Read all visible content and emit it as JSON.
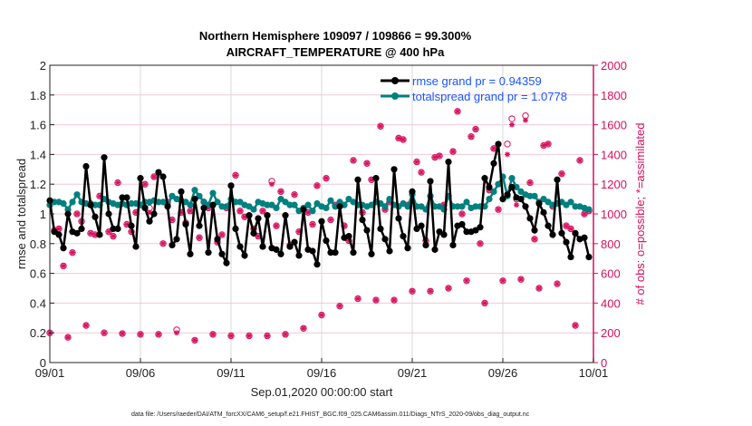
{
  "chart_data": {
    "type": "line",
    "title": "Northern Hemisphere 109097 / 109866 = 99.300%",
    "subtitle": "AIRCRAFT_TEMPERATURE @ 400 hPa",
    "xlabel": "Sep.01,2020 00:00:00 start",
    "ylabel": "rmse and totalspread",
    "ylabel_right": "# of obs: o=possible; *=assimilated",
    "footer": "data file: /Users/raeder/DAI/ATM_forcXX/CAM6_setup/f.e21.FHIST_BGC.f09_025.CAM6assim.011/Diags_NTrS_2020-09/obs_diag_output.nc",
    "x_tick_labels": [
      "09/01",
      "09/06",
      "09/11",
      "09/16",
      "09/21",
      "09/26",
      "10/01"
    ],
    "x_tick_days": [
      0,
      5,
      10,
      15,
      20,
      25,
      30
    ],
    "xlim_days": [
      0,
      30
    ],
    "x_step_days": 0.25,
    "ylim": [
      0,
      2
    ],
    "y_ticks": [
      "0",
      "0.2",
      "0.4",
      "0.6",
      "0.8",
      "1",
      "1.2",
      "1.4",
      "1.6",
      "1.8",
      "2"
    ],
    "ylim_right": [
      0,
      2000
    ],
    "y_ticks_right": [
      "0",
      "200",
      "400",
      "600",
      "800",
      "1000",
      "1200",
      "1400",
      "1600",
      "1800",
      "2000"
    ],
    "grid": true,
    "legend_position": "top-right",
    "colors": {
      "rmse": "#000000",
      "totalspread": "#00807f",
      "obs": "#d6105e",
      "legend_text": "#1a55ff"
    },
    "series": [
      {
        "name": "rmse grand pr = 0.94359",
        "values": [
          1.09,
          0.88,
          0.86,
          0.77,
          1.0,
          0.88,
          0.87,
          0.9,
          1.32,
          1.06,
          0.98,
          0.86,
          1.38,
          1.0,
          0.9,
          0.9,
          1.11,
          1.11,
          0.92,
          0.78,
          1.24,
          1.04,
          0.95,
          1.0,
          1.28,
          1.25,
          1.05,
          0.79,
          0.83,
          1.15,
          0.93,
          0.73,
          1.1,
          0.92,
          1.04,
          0.74,
          1.06,
          0.83,
          0.73,
          0.67,
          1.19,
          0.9,
          0.78,
          0.72,
          0.99,
          0.87,
          0.97,
          0.78,
          0.99,
          0.77,
          0.76,
          0.73,
          0.99,
          0.78,
          0.81,
          0.72,
          1.03,
          0.76,
          0.75,
          0.66,
          0.95,
          0.82,
          0.74,
          0.74,
          1.05,
          0.84,
          0.85,
          0.74,
          1.23,
          0.96,
          0.89,
          0.73,
          1.24,
          0.9,
          0.83,
          0.75,
          1.3,
          0.97,
          0.85,
          0.77,
          1.15,
          0.9,
          0.92,
          0.79,
          1.22,
          0.76,
          0.88,
          0.86,
          1.35,
          0.79,
          0.92,
          0.93,
          0.88,
          0.88,
          0.89,
          0.91,
          1.24,
          1.18,
          1.34,
          1.47,
          1.1,
          1.13,
          1.18,
          1.11,
          1.1,
          1.05,
          0.97,
          0.89,
          1.07,
          1.01,
          0.92,
          0.86,
          1.23,
          0.87,
          0.81,
          0.71,
          0.87,
          0.83,
          0.84,
          0.71
        ]
      },
      {
        "name": "totalspread grand pr = 1.0778",
        "values": [
          1.06,
          1.08,
          1.08,
          1.07,
          1.03,
          1.08,
          1.13,
          1.08,
          1.07,
          1.07,
          1.06,
          1.06,
          1.1,
          1.08,
          1.07,
          1.06,
          1.07,
          1.06,
          1.07,
          1.07,
          1.06,
          1.08,
          1.08,
          1.09,
          1.08,
          1.08,
          1.06,
          1.12,
          1.1,
          1.09,
          1.08,
          1.06,
          1.16,
          1.12,
          1.08,
          1.06,
          1.14,
          1.08,
          1.05,
          1.05,
          1.1,
          1.08,
          1.08,
          1.06,
          1.05,
          1.03,
          1.08,
          1.07,
          1.06,
          1.06,
          1.04,
          1.1,
          1.08,
          1.06,
          1.06,
          1.02,
          1.04,
          1.06,
          1.02,
          1.07,
          1.05,
          1.04,
          1.09,
          1.05,
          1.08,
          1.06,
          1.1,
          1.08,
          1.06,
          1.06,
          1.05,
          1.06,
          1.08,
          1.07,
          1.05,
          1.1,
          1.06,
          1.05,
          1.07,
          1.05,
          1.13,
          1.05,
          1.05,
          1.03,
          1.12,
          1.05,
          1.05,
          1.03,
          1.12,
          1.05,
          1.05,
          1.05,
          1.08,
          1.04,
          1.05,
          1.05,
          1.05,
          1.1,
          1.15,
          1.2,
          1.25,
          1.12,
          1.24,
          1.18,
          1.15,
          1.13,
          1.12,
          1.12,
          1.08,
          1.1,
          1.08,
          1.06,
          1.07,
          1.08,
          1.06,
          1.08,
          1.05,
          1.05,
          1.04,
          1.03
        ]
      }
    ],
    "obs_possible": [
      200,
      890,
      900,
      650,
      170,
      740,
      1000,
      950,
      250,
      870,
      860,
      1120,
      200,
      880,
      850,
      1210,
      195,
      930,
      880,
      1010,
      190,
      1200,
      1040,
      1250,
      190,
      800,
      1080,
      960,
      220,
      1010,
      940,
      1020,
      150,
      840,
      1080,
      1040,
      190,
      810,
      860,
      1040,
      180,
      1260,
      1020,
      980,
      180,
      900,
      850,
      1020,
      180,
      1220,
      920,
      1150,
      190,
      790,
      1130,
      880,
      230,
      1010,
      930,
      1190,
      320,
      1240,
      960,
      1060,
      380,
      920,
      820,
      1360,
      430,
      1010,
      1340,
      1230,
      420,
      1590,
      1030,
      1080,
      420,
      1510,
      1500,
      1060,
      480,
      1350,
      1280,
      820,
      480,
      1380,
      1390,
      1060,
      500,
      1420,
      1690,
      1000,
      550,
      1520,
      1570,
      800,
      400,
      1160,
      1440,
      1030,
      550,
      1470,
      1640,
      1100,
      560,
      1660,
      1210,
      830,
      500,
      1460,
      1470,
      1050,
      530,
      1270,
      920,
      900,
      250,
      1360,
      1000,
      1020
    ],
    "obs_assimilated": [
      200,
      890,
      900,
      650,
      170,
      740,
      1000,
      950,
      250,
      870,
      860,
      1120,
      200,
      880,
      850,
      1210,
      195,
      930,
      880,
      1010,
      190,
      1200,
      1010,
      1250,
      190,
      800,
      1080,
      960,
      200,
      1010,
      940,
      1020,
      150,
      840,
      1080,
      1040,
      190,
      810,
      860,
      1040,
      180,
      1260,
      1020,
      980,
      180,
      900,
      850,
      1020,
      180,
      1200,
      920,
      1150,
      190,
      790,
      1130,
      880,
      230,
      1010,
      930,
      1190,
      320,
      1240,
      960,
      1060,
      380,
      920,
      820,
      1360,
      430,
      1010,
      1340,
      1230,
      420,
      1590,
      1030,
      1080,
      420,
      1510,
      1500,
      1060,
      480,
      1350,
      1280,
      820,
      480,
      1380,
      1390,
      1060,
      500,
      1420,
      1690,
      1000,
      550,
      1520,
      1570,
      800,
      400,
      1160,
      1440,
      1030,
      550,
      1400,
      1600,
      1060,
      560,
      1630,
      1210,
      830,
      500,
      1460,
      1470,
      1050,
      530,
      1270,
      920,
      900,
      250,
      1360,
      1000,
      1020
    ]
  }
}
